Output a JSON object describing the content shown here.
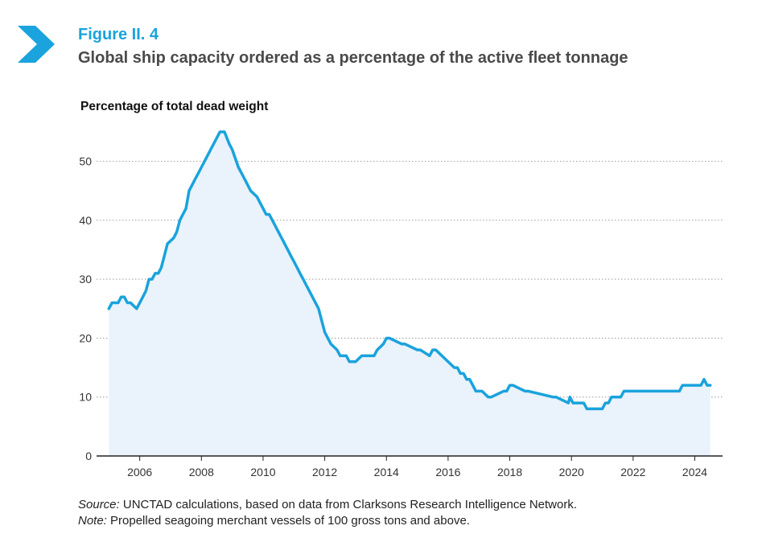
{
  "header": {
    "figure_label": "Figure II. 4",
    "title": "Global ship capacity ordered as a percentage of the active fleet tonnage"
  },
  "colors": {
    "accent": "#1aa3dc",
    "line": "#1aa3dc",
    "fill": "#eaf2fb",
    "title": "#4a4a4a",
    "grid": "#9a9a9a"
  },
  "footer": {
    "source_label": "Source:",
    "source_text": " UNCTAD calculations, based on data from Clarksons Research Intelligence Network.",
    "note_label": "Note:",
    "note_text": " Propelled seagoing merchant vessels of 100 gross tons and above."
  },
  "chart_data": {
    "type": "area",
    "ylabel": "Percentage of total dead weight",
    "xlabel": "",
    "xlim": [
      2004.6,
      2024.9
    ],
    "ylim": [
      0,
      55
    ],
    "yticks": [
      0,
      10,
      20,
      30,
      40,
      50
    ],
    "xticks": [
      "2006",
      "2008",
      "2010",
      "2012",
      "2014",
      "2016",
      "2018",
      "2020",
      "2022",
      "2024"
    ],
    "grid": "horizontal dotted",
    "series": [
      {
        "x": [
          2005.0,
          2005.1,
          2005.3,
          2005.4,
          2005.5,
          2005.6,
          2005.7,
          2005.9,
          2006.0,
          2006.2,
          2006.3,
          2006.4,
          2006.5,
          2006.6,
          2006.7,
          2006.8,
          2006.9,
          2007.1,
          2007.2,
          2007.3,
          2007.4,
          2007.5,
          2007.6,
          2007.8,
          2007.9,
          2008.0,
          2008.2,
          2008.3,
          2008.5,
          2008.6,
          2008.75,
          2008.9,
          2009.0,
          2009.2,
          2009.4,
          2009.6,
          2009.8,
          2009.9,
          2010.0,
          2010.1,
          2010.2,
          2010.3,
          2010.4,
          2010.5,
          2010.6,
          2010.7,
          2010.8,
          2010.9,
          2011.0,
          2011.1,
          2011.2,
          2011.3,
          2011.4,
          2011.6,
          2011.8,
          2012.0,
          2012.2,
          2012.4,
          2012.5,
          2012.7,
          2012.8,
          2013.0,
          2013.2,
          2013.6,
          2013.7,
          2013.9,
          2014.0,
          2014.1,
          2014.5,
          2014.6,
          2015.0,
          2015.1,
          2015.4,
          2015.5,
          2015.6,
          2016.0,
          2016.2,
          2016.3,
          2016.4,
          2016.5,
          2016.6,
          2016.7,
          2016.8,
          2016.9,
          2017.0,
          2017.1,
          2017.3,
          2017.4,
          2017.8,
          2017.9,
          2018.0,
          2018.1,
          2018.5,
          2018.6,
          2019.4,
          2019.5,
          2019.9,
          2019.95,
          2020.05,
          2020.1,
          2020.4,
          2020.5,
          2021.0,
          2021.1,
          2021.2,
          2021.3,
          2021.6,
          2021.7,
          2023.5,
          2023.6,
          2024.2,
          2024.3,
          2024.4,
          2024.5
        ],
        "values": [
          25,
          26,
          26,
          27,
          27,
          26,
          26,
          25,
          26,
          28,
          30,
          30,
          31,
          31,
          32,
          34,
          36,
          37,
          38,
          40,
          41,
          42,
          45,
          47,
          48,
          49,
          51,
          52,
          54,
          55,
          55,
          53,
          52,
          49,
          47,
          45,
          44,
          43,
          42,
          41,
          41,
          40,
          39,
          38,
          37,
          36,
          35,
          34,
          33,
          32,
          31,
          30,
          29,
          27,
          25,
          21,
          19,
          18,
          17,
          17,
          16,
          16,
          17,
          17,
          18,
          19,
          20,
          20,
          19,
          19,
          18,
          18,
          17,
          18,
          18,
          16,
          15,
          15,
          14,
          14,
          13,
          13,
          12,
          11,
          11,
          11,
          10,
          10,
          11,
          11,
          12,
          12,
          11,
          11,
          10,
          10,
          9,
          10,
          9,
          9,
          9,
          8,
          8,
          9,
          9,
          10,
          10,
          11,
          11,
          12,
          12,
          13,
          12,
          12
        ]
      }
    ]
  }
}
